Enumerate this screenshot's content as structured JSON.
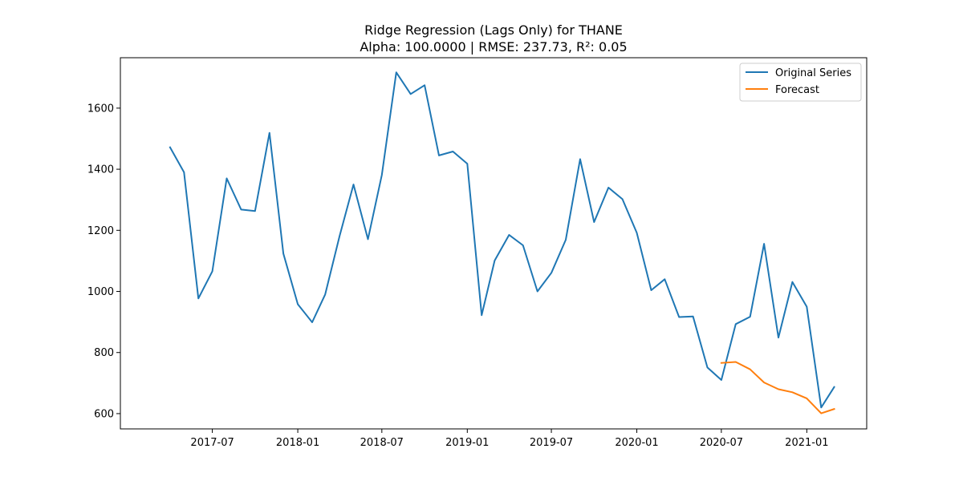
{
  "chart_data": {
    "type": "line",
    "title": "Ridge Regression (Lags Only) for THANE",
    "subtitle": "Alpha: 100.0000 | RMSE: 237.73, R²: 0.05",
    "xlabel": "",
    "ylabel": "",
    "xlim": [
      "2016-12-15",
      "2021-05-10"
    ],
    "ylim": [
      550,
      1765
    ],
    "x_ticks": [
      "2017-07-01",
      "2018-01-01",
      "2018-07-01",
      "2019-01-01",
      "2019-07-01",
      "2020-01-01",
      "2020-07-01",
      "2021-01-01"
    ],
    "x_tick_labels": [
      "2017-07",
      "2018-01",
      "2018-07",
      "2019-01",
      "2019-07",
      "2020-01",
      "2020-07",
      "2021-01"
    ],
    "y_ticks": [
      600,
      800,
      1000,
      1200,
      1400,
      1600
    ],
    "y_tick_labels": [
      "600",
      "800",
      "1000",
      "1200",
      "1400",
      "1600"
    ],
    "grid": false,
    "legend_position": "top-right",
    "series": [
      {
        "name": "Original Series",
        "color": "#1f77b4",
        "x": [
          "2017-04-01",
          "2017-05-01",
          "2017-06-01",
          "2017-07-01",
          "2017-08-01",
          "2017-09-01",
          "2017-10-01",
          "2017-11-01",
          "2017-12-01",
          "2018-01-01",
          "2018-02-01",
          "2018-03-01",
          "2018-04-01",
          "2018-05-01",
          "2018-06-01",
          "2018-07-01",
          "2018-08-01",
          "2018-09-01",
          "2018-10-01",
          "2018-11-01",
          "2018-12-01",
          "2019-01-01",
          "2019-02-01",
          "2019-03-01",
          "2019-04-01",
          "2019-05-01",
          "2019-06-01",
          "2019-07-01",
          "2019-08-01",
          "2019-09-01",
          "2019-10-01",
          "2019-11-01",
          "2019-12-01",
          "2020-01-01",
          "2020-02-01",
          "2020-03-01",
          "2020-04-01",
          "2020-05-01",
          "2020-06-01",
          "2020-07-01",
          "2020-08-01",
          "2020-09-01",
          "2020-10-01",
          "2020-11-01",
          "2020-12-01",
          "2021-01-01",
          "2021-02-01",
          "2021-03-01"
        ],
        "y": [
          1472,
          1390,
          977,
          1066,
          1370,
          1268,
          1263,
          1519,
          1124,
          958,
          899,
          990,
          1182,
          1350,
          1171,
          1381,
          1717,
          1646,
          1675,
          1445,
          1458,
          1418,
          922,
          1101,
          1185,
          1151,
          1000,
          1061,
          1169,
          1433,
          1227,
          1340,
          1302,
          1192,
          1004,
          1040,
          916,
          918,
          751,
          710,
          893,
          917,
          1156,
          849,
          1031,
          950,
          620,
          687
        ]
      },
      {
        "name": "Forecast",
        "color": "#ff7f0e",
        "x": [
          "2020-07-01",
          "2020-08-01",
          "2020-09-01",
          "2020-10-01",
          "2020-11-01",
          "2020-12-01",
          "2021-01-01",
          "2021-02-01",
          "2021-03-01"
        ],
        "y": [
          766,
          769,
          745,
          702,
          680,
          670,
          650,
          601,
          615
        ]
      }
    ]
  }
}
